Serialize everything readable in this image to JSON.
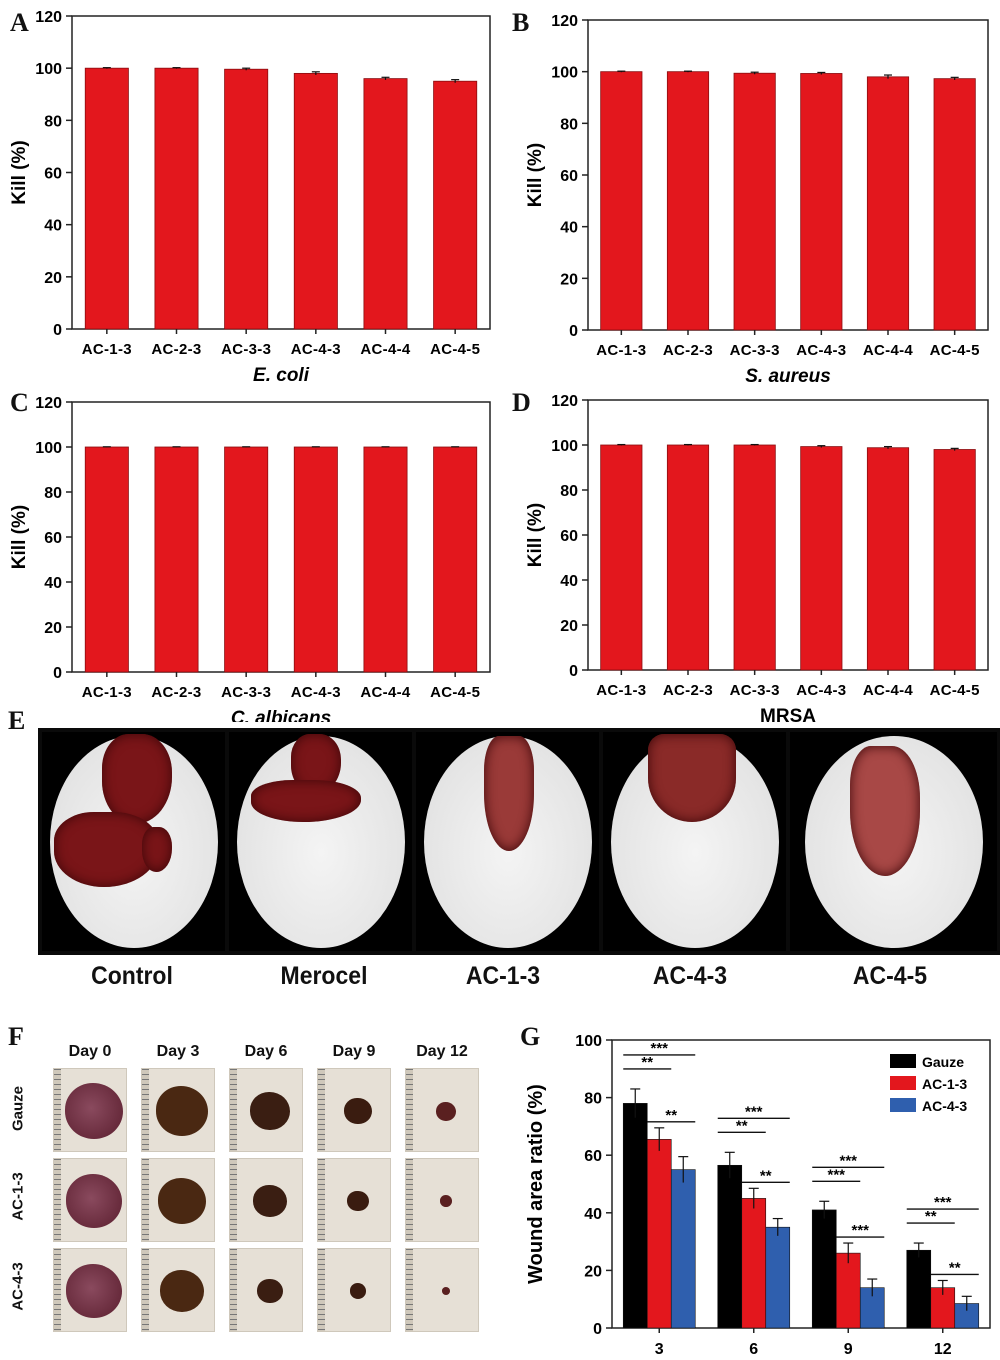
{
  "panels": {
    "A": "A",
    "B": "B",
    "C": "C",
    "D": "D",
    "E": "E",
    "F": "F",
    "G": "G"
  },
  "colors": {
    "bar_red": "#e3171d",
    "gauze": "#000000",
    "ac13": "#e3171d",
    "ac43": "#2f5fae"
  },
  "photo_labels": [
    "Control",
    "Merocel",
    "AC-1-3",
    "AC-4-3",
    "AC-4-5"
  ],
  "wound_days": [
    "Day 0",
    "Day 3",
    "Day 6",
    "Day 9",
    "Day 12"
  ],
  "wound_rows": [
    "Gauze",
    "AC-1-3",
    "AC-4-3"
  ],
  "chart_data": [
    {
      "panel": "A",
      "type": "bar",
      "categories": [
        "AC-1-3",
        "AC-2-3",
        "AC-3-3",
        "AC-4-3",
        "AC-4-4",
        "AC-4-5"
      ],
      "values": [
        100,
        100,
        99.6,
        98,
        96,
        95
      ],
      "errors": [
        0.2,
        0.2,
        0.4,
        0.6,
        0.5,
        0.6
      ],
      "xlabel": "E. coli",
      "ylabel": "Kill (%)",
      "ylim": [
        0,
        120
      ],
      "yticks": [
        0,
        20,
        40,
        60,
        80,
        100,
        120
      ]
    },
    {
      "panel": "B",
      "type": "bar",
      "categories": [
        "AC-1-3",
        "AC-2-3",
        "AC-3-3",
        "AC-4-3",
        "AC-4-4",
        "AC-4-5"
      ],
      "values": [
        100,
        100,
        99.4,
        99.3,
        98,
        97.3
      ],
      "errors": [
        0.2,
        0.2,
        0.4,
        0.4,
        0.7,
        0.5
      ],
      "xlabel": "S. aureus",
      "ylabel": "Kill (%)",
      "ylim": [
        0,
        120
      ],
      "yticks": [
        0,
        20,
        40,
        60,
        80,
        100,
        120
      ]
    },
    {
      "panel": "C",
      "type": "bar",
      "categories": [
        "AC-1-3",
        "AC-2-3",
        "AC-3-3",
        "AC-4-3",
        "AC-4-4",
        "AC-4-5"
      ],
      "values": [
        100,
        100,
        100,
        100,
        100,
        100
      ],
      "errors": [
        0.1,
        0.1,
        0.1,
        0.1,
        0.1,
        0.1
      ],
      "xlabel": "C. albicans",
      "ylabel": "Kill (%)",
      "ylim": [
        0,
        120
      ],
      "yticks": [
        0,
        20,
        40,
        60,
        80,
        100,
        120
      ]
    },
    {
      "panel": "D",
      "type": "bar",
      "categories": [
        "AC-1-3",
        "AC-2-3",
        "AC-3-3",
        "AC-4-3",
        "AC-4-4",
        "AC-4-5"
      ],
      "values": [
        100,
        100,
        100,
        99.3,
        98.8,
        98
      ],
      "errors": [
        0.2,
        0.2,
        0.2,
        0.4,
        0.5,
        0.5
      ],
      "xlabel": "MRSA",
      "ylabel": "Kill (%)",
      "ylim": [
        0,
        120
      ],
      "yticks": [
        0,
        20,
        40,
        60,
        80,
        100,
        120
      ]
    },
    {
      "panel": "G",
      "type": "bar",
      "categories": [
        "3",
        "6",
        "9",
        "12"
      ],
      "series": [
        {
          "name": "Gauze",
          "values": [
            78,
            56.5,
            41,
            27
          ],
          "errors": [
            5,
            4.5,
            3,
            2.5
          ]
        },
        {
          "name": "AC-1-3",
          "values": [
            65.5,
            45,
            26,
            14
          ],
          "errors": [
            4,
            3.5,
            3.5,
            2.5
          ]
        },
        {
          "name": "AC-4-3",
          "values": [
            55,
            35,
            14,
            8.5
          ],
          "errors": [
            4.5,
            3,
            3,
            2.5
          ]
        }
      ],
      "ylabel": "Wound area ratio (%)",
      "ylim": [
        0,
        100
      ],
      "yticks": [
        0,
        20,
        40,
        60,
        80,
        100
      ],
      "legend": "top-right",
      "significance": [
        {
          "group": 0,
          "pairs": [
            [
              "Gauze",
              "AC-4-3",
              "***"
            ],
            [
              "Gauze",
              "AC-1-3",
              "**"
            ],
            [
              "AC-1-3",
              "AC-4-3",
              "**"
            ]
          ]
        },
        {
          "group": 1,
          "pairs": [
            [
              "Gauze",
              "AC-4-3",
              "***"
            ],
            [
              "Gauze",
              "AC-1-3",
              "**"
            ],
            [
              "AC-1-3",
              "AC-4-3",
              "**"
            ]
          ]
        },
        {
          "group": 2,
          "pairs": [
            [
              "Gauze",
              "AC-4-3",
              "***"
            ],
            [
              "Gauze",
              "AC-1-3",
              "***"
            ],
            [
              "AC-1-3",
              "AC-4-3",
              "***"
            ]
          ]
        },
        {
          "group": 3,
          "pairs": [
            [
              "Gauze",
              "AC-4-3",
              "***"
            ],
            [
              "Gauze",
              "AC-1-3",
              "**"
            ],
            [
              "AC-1-3",
              "AC-4-3",
              "**"
            ]
          ]
        }
      ]
    }
  ]
}
